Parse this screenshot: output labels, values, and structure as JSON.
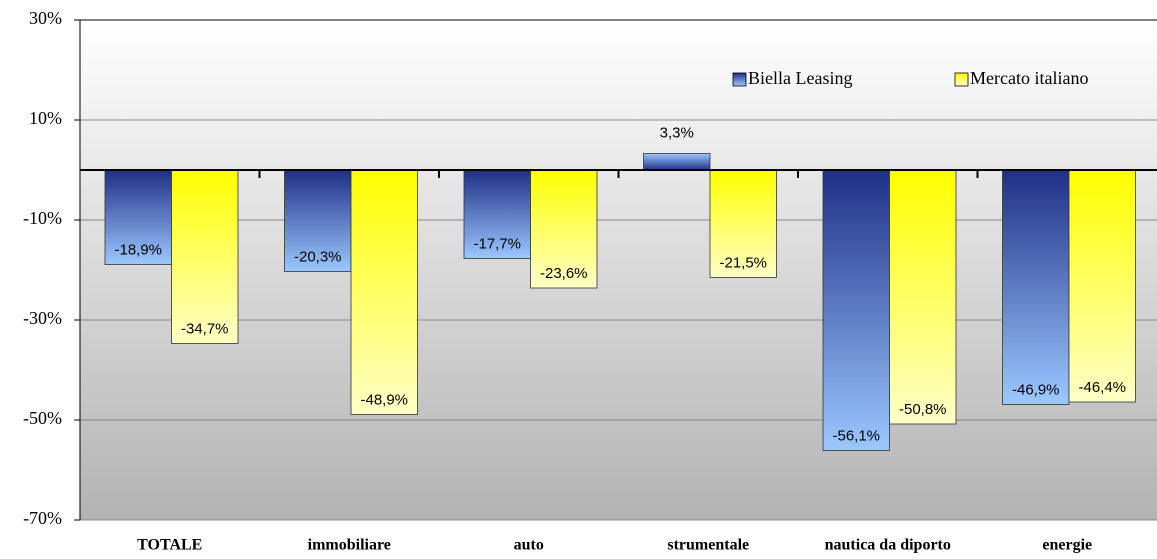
{
  "chart_data": {
    "type": "bar",
    "categories": [
      "TOTALE",
      "immobiliare",
      "auto",
      "strumentale",
      "nautica da diporto",
      "energie"
    ],
    "series": [
      {
        "name": "Biella Leasing",
        "color": "#1f2f86",
        "values": [
          -18.9,
          -20.3,
          -17.7,
          3.3,
          -56.1,
          -46.9
        ],
        "value_labels": [
          "-18,9%",
          "-20,3%",
          "-17,7%",
          "3,3%",
          "-56,1%",
          "-46,9%"
        ]
      },
      {
        "name": "Mercato italiano",
        "color": "#ffff00",
        "values": [
          -34.7,
          -48.9,
          -23.6,
          -21.5,
          -50.8,
          -46.4
        ],
        "value_labels": [
          "-34,7%",
          "-48,9%",
          "-23,6%",
          "-21,5%",
          "-50,8%",
          "-46,4%"
        ]
      }
    ],
    "ylim": [
      -70,
      30
    ],
    "yticks": [
      {
        "value": -70,
        "label": "-70%"
      },
      {
        "value": -50,
        "label": "-50%"
      },
      {
        "value": -30,
        "label": "-30%"
      },
      {
        "value": -10,
        "label": "-10%"
      },
      {
        "value": 10,
        "label": "10%"
      },
      {
        "value": 30,
        "label": "30%"
      }
    ],
    "grid": true,
    "legend": "top-right"
  }
}
